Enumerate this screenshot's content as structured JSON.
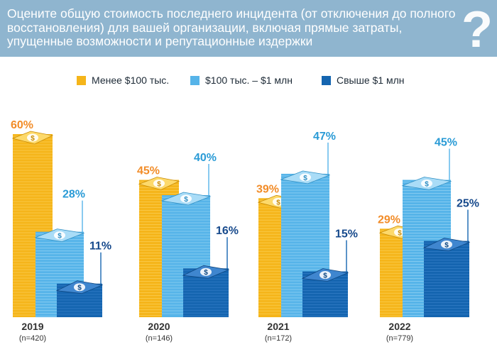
{
  "question": "Оцените общую стоимость последнего инцидента (от отключения до полного восстановления) для вашей организации, включая прямые затраты, упущенные возможности и репутационные издержки",
  "question_icon": "?",
  "colors": {
    "header_bg": "#8fb5cf",
    "low": "#f5b51a",
    "mid": "#56b4e9",
    "high": "#1565b0",
    "label_low": "#f28c28",
    "label_mid": "#2a9bd6",
    "label_high": "#174a8c"
  },
  "chart_data": {
    "type": "bar",
    "title": "Оцените общую стоимость последнего инцидента (от отключения до полного восстановления) для вашей организации, включая прямые затраты, упущенные возможности и репутационные издержки",
    "categories": [
      "2019",
      "2020",
      "2021",
      "2022"
    ],
    "sample_sizes": [
      "(n=420)",
      "(n=146)",
      "(n=172)",
      "(n=779)"
    ],
    "series": [
      {
        "name": "Менее $100 тыс.",
        "values": [
          60,
          45,
          39,
          29
        ],
        "labels": [
          "60%",
          "45%",
          "39%",
          "29%"
        ]
      },
      {
        "name": "$100 тыс. – $1 млн",
        "values": [
          28,
          40,
          47,
          45
        ],
        "labels": [
          "28%",
          "40%",
          "47%",
          "45%"
        ]
      },
      {
        "name": "Свыше $1 млн",
        "values": [
          11,
          16,
          15,
          25
        ],
        "labels": [
          "11%",
          "16%",
          "15%",
          "25%"
        ]
      }
    ],
    "unit": "%",
    "ylim": [
      0,
      60
    ],
    "legend_position": "top"
  }
}
